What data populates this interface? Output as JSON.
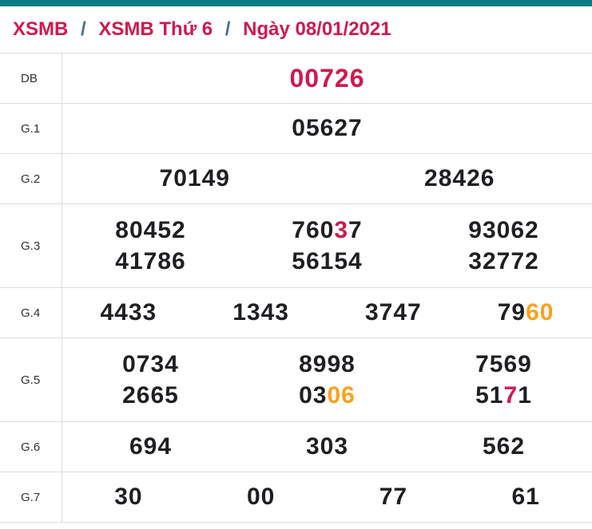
{
  "breadcrumb": {
    "items": [
      "XSMB",
      "XSMB Thứ 6",
      "Ngày 08/01/2021"
    ],
    "separator": "/"
  },
  "colors": {
    "topbar": "#0d7c82",
    "breadcrumb": "#d0194d",
    "separator": "#4a6d96",
    "digit": "#1f1f23",
    "highlight_red": "#d0194d",
    "highlight_orange": "#f9a21b",
    "divider": "#dcdcdc",
    "row_label": "#333333"
  },
  "table": {
    "rows": [
      {
        "label": "DB",
        "emphasis": "db",
        "lines": [
          [
            [
              {
                "t": "00726",
                "c": "highlight_red"
              }
            ]
          ]
        ]
      },
      {
        "label": "G.1",
        "lines": [
          [
            [
              {
                "t": "05627",
                "c": "digit"
              }
            ]
          ]
        ]
      },
      {
        "label": "G.2",
        "lines": [
          [
            [
              {
                "t": "70149",
                "c": "digit"
              }
            ],
            [
              {
                "t": "28426",
                "c": "digit"
              }
            ]
          ]
        ]
      },
      {
        "label": "G.3",
        "lines": [
          [
            [
              {
                "t": "80452",
                "c": "digit"
              }
            ],
            [
              {
                "t": "760",
                "c": "digit"
              },
              {
                "t": "3",
                "c": "highlight_red"
              },
              {
                "t": "7",
                "c": "digit"
              }
            ],
            [
              {
                "t": "93062",
                "c": "digit"
              }
            ]
          ],
          [
            [
              {
                "t": "41786",
                "c": "digit"
              }
            ],
            [
              {
                "t": "56154",
                "c": "digit"
              }
            ],
            [
              {
                "t": "32772",
                "c": "digit"
              }
            ]
          ]
        ]
      },
      {
        "label": "G.4",
        "lines": [
          [
            [
              {
                "t": "4433",
                "c": "digit"
              }
            ],
            [
              {
                "t": "1343",
                "c": "digit"
              }
            ],
            [
              {
                "t": "3747",
                "c": "digit"
              }
            ],
            [
              {
                "t": "79",
                "c": "digit"
              },
              {
                "t": "60",
                "c": "highlight_orange"
              }
            ]
          ]
        ]
      },
      {
        "label": "G.5",
        "lines": [
          [
            [
              {
                "t": "0734",
                "c": "digit"
              }
            ],
            [
              {
                "t": "8998",
                "c": "digit"
              }
            ],
            [
              {
                "t": "7569",
                "c": "digit"
              }
            ]
          ],
          [
            [
              {
                "t": "2665",
                "c": "digit"
              }
            ],
            [
              {
                "t": "03",
                "c": "digit"
              },
              {
                "t": "06",
                "c": "highlight_orange"
              }
            ],
            [
              {
                "t": "51",
                "c": "digit"
              },
              {
                "t": "7",
                "c": "highlight_red"
              },
              {
                "t": "1",
                "c": "digit"
              }
            ]
          ]
        ]
      },
      {
        "label": "G.6",
        "lines": [
          [
            [
              {
                "t": "694",
                "c": "digit"
              }
            ],
            [
              {
                "t": "303",
                "c": "digit"
              }
            ],
            [
              {
                "t": "562",
                "c": "digit"
              }
            ]
          ]
        ]
      },
      {
        "label": "G.7",
        "lines": [
          [
            [
              {
                "t": "30",
                "c": "digit"
              }
            ],
            [
              {
                "t": "00",
                "c": "digit"
              }
            ],
            [
              {
                "t": "77",
                "c": "digit"
              }
            ],
            [
              {
                "t": "61",
                "c": "digit"
              }
            ]
          ]
        ]
      }
    ]
  }
}
